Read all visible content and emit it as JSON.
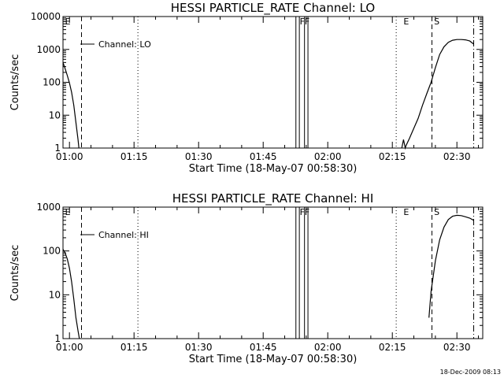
{
  "footer": {
    "timestamp": "18-Dec-2009 08:13"
  },
  "chart_data": [
    {
      "type": "line",
      "title": "HESSI PARTICLE_RATE Channel: LO",
      "xlabel": "Start Time (18-May-07 00:58:30)",
      "ylabel": "Counts/sec",
      "xlim_min": [
        58.5,
        156
      ],
      "x_tick_labels": [
        "01:00",
        "01:15",
        "01:30",
        "01:45",
        "02:00",
        "02:15",
        "02:30"
      ],
      "x_tick_minutes": [
        60,
        75,
        90,
        105,
        120,
        135,
        150
      ],
      "yscale": "log",
      "ylim": [
        1,
        10000
      ],
      "y_tick_labels": [
        "1",
        "10",
        "100",
        "1000",
        "10000"
      ],
      "y_tick_values": [
        1,
        10,
        100,
        1000,
        10000
      ],
      "legend": {
        "label": "Channel: LO",
        "position": "top-left"
      },
      "markers": [
        {
          "label": "E",
          "x_min": 58.8
        },
        {
          "label": "FF",
          "x_min": 113.3
        },
        {
          "label": "E",
          "x_min": 137.4
        },
        {
          "label": "S",
          "x_min": 144.5
        }
      ],
      "vlines_dashed": [
        62.8,
        144.2
      ],
      "vlines_dotted": [
        75.9,
        135.9
      ],
      "vlines_dashdot": [
        153.9
      ],
      "gap_lines": [
        112.6,
        113.4,
        114.6,
        115.4
      ],
      "series": [
        {
          "x_min": [
            58.5,
            59,
            59.5,
            60,
            60.5,
            61,
            61.5,
            62,
            62.2,
            137.2,
            137.6,
            138.0,
            138.2,
            139,
            140,
            141,
            142,
            143,
            144,
            145,
            146,
            147,
            148,
            149,
            150,
            151,
            152,
            153,
            153.9
          ],
          "y": [
            400,
            260,
            160,
            95,
            50,
            20,
            6,
            1.8,
            1,
            1,
            1.8,
            1,
            1.2,
            2,
            4,
            8,
            20,
            45,
            100,
            280,
            700,
            1200,
            1650,
            1900,
            2000,
            2000,
            1950,
            1800,
            1450
          ]
        }
      ]
    },
    {
      "type": "line",
      "title": "HESSI PARTICLE_RATE Channel: HI",
      "xlabel": "Start Time (18-May-07 00:58:30)",
      "ylabel": "Counts/sec",
      "xlim_min": [
        58.5,
        156
      ],
      "x_tick_labels": [
        "01:00",
        "01:15",
        "01:30",
        "01:45",
        "02:00",
        "02:15",
        "02:30"
      ],
      "x_tick_minutes": [
        60,
        75,
        90,
        105,
        120,
        135,
        150
      ],
      "yscale": "log",
      "ylim": [
        1,
        1000
      ],
      "y_tick_labels": [
        "1",
        "10",
        "100",
        "1000"
      ],
      "y_tick_values": [
        1,
        10,
        100,
        1000
      ],
      "legend": {
        "label": "Channel: HI",
        "position": "top-left"
      },
      "markers": [
        {
          "label": "E",
          "x_min": 58.8
        },
        {
          "label": "FF",
          "x_min": 113.3
        },
        {
          "label": "E",
          "x_min": 137.4
        },
        {
          "label": "S",
          "x_min": 144.5
        }
      ],
      "vlines_dashed": [
        62.8,
        144.2
      ],
      "vlines_dotted": [
        75.9,
        135.9
      ],
      "vlines_dashdot": [
        153.9
      ],
      "gap_lines": [
        112.6,
        113.4,
        114.6,
        115.4
      ],
      "series": [
        {
          "x_min": [
            58.5,
            59,
            59.5,
            60,
            60.5,
            61,
            61.5,
            62,
            62.3,
            143.5,
            144,
            145,
            146,
            147,
            148,
            149,
            150,
            151,
            152,
            153,
            153.9
          ],
          "y": [
            110,
            90,
            65,
            40,
            20,
            8,
            3,
            1.5,
            1,
            3,
            12,
            60,
            180,
            350,
            520,
            620,
            650,
            640,
            600,
            560,
            500
          ]
        }
      ]
    }
  ]
}
